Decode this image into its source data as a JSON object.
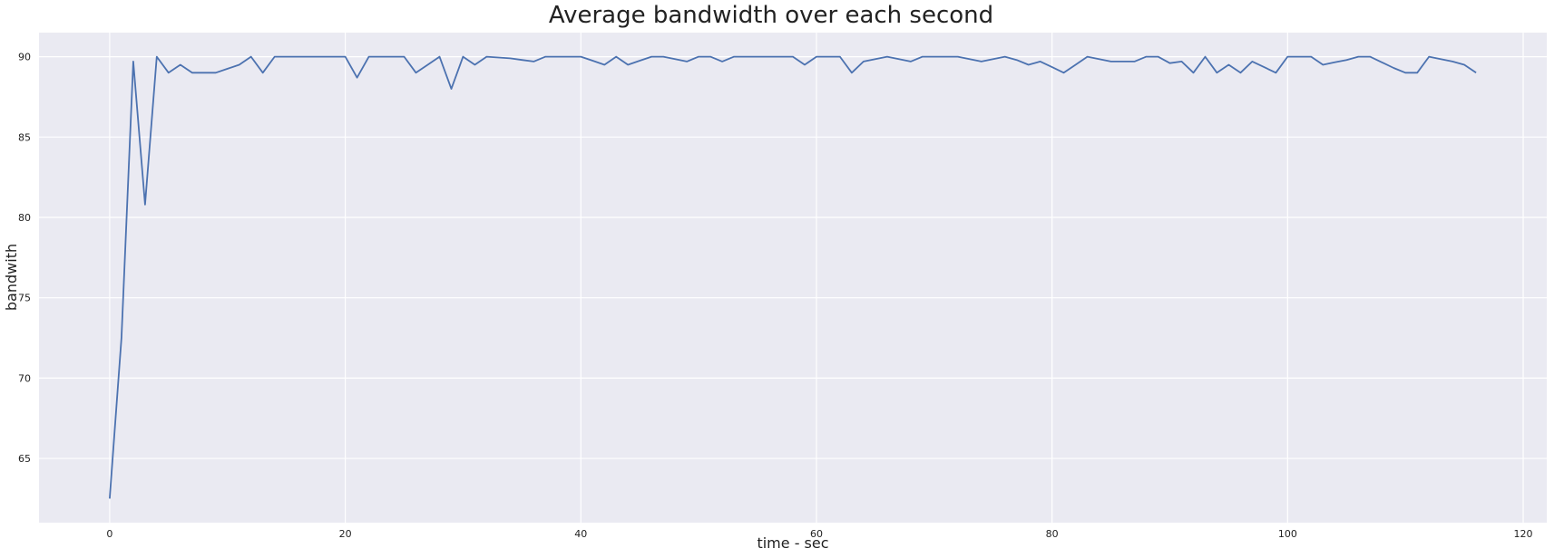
{
  "chart_data": {
    "type": "line",
    "title": "Average bandwidth over each second",
    "xlabel": "time - sec",
    "ylabel": "bandwith",
    "xlim": [
      -6,
      122
    ],
    "ylim": [
      61,
      91.5
    ],
    "xticks": [
      0,
      20,
      40,
      60,
      80,
      100,
      120
    ],
    "yticks": [
      65,
      70,
      75,
      80,
      85,
      90
    ],
    "grid": true,
    "background": "#eaeaf2",
    "grid_color": "#ffffff",
    "series": [
      {
        "color": "#4c72b0",
        "x": [
          0,
          1,
          2,
          3,
          4,
          5,
          6,
          7,
          8,
          9,
          10,
          11,
          12,
          13,
          14,
          15,
          16,
          17,
          18,
          19,
          20,
          21,
          22,
          23,
          24,
          25,
          26,
          27,
          28,
          29,
          30,
          31,
          32,
          33,
          34,
          35,
          36,
          37,
          38,
          39,
          40,
          41,
          42,
          43,
          44,
          45,
          46,
          47,
          48,
          49,
          50,
          51,
          52,
          53,
          54,
          55,
          56,
          57,
          58,
          59,
          60,
          61,
          62,
          63,
          64,
          65,
          66,
          67,
          68,
          69,
          70,
          71,
          72,
          73,
          74,
          75,
          76,
          77,
          78,
          79,
          80,
          81,
          82,
          83,
          84,
          85,
          86,
          87,
          88,
          89,
          90,
          91,
          92,
          93,
          94,
          95,
          96,
          97,
          98,
          99,
          100,
          101,
          102,
          103,
          104,
          105,
          106,
          107,
          108,
          109,
          110,
          111,
          112,
          113,
          114,
          115,
          116
        ],
        "y": [
          62.5,
          72.5,
          89.7,
          80.8,
          90,
          89,
          89.5,
          89,
          89,
          89,
          89.25,
          89.5,
          90,
          89,
          90,
          90,
          90,
          90,
          90,
          90,
          90,
          88.7,
          90,
          90,
          90,
          90,
          89,
          89.5,
          90,
          88,
          90,
          89.5,
          90,
          89.95,
          89.9,
          89.8,
          89.7,
          90,
          90,
          90,
          90,
          89.75,
          89.5,
          90,
          89.5,
          89.75,
          90,
          90,
          89.85,
          89.7,
          90,
          90,
          89.7,
          90,
          90,
          90,
          90,
          90,
          90,
          89.5,
          90,
          90,
          90,
          89,
          89.7,
          89.85,
          90,
          89.85,
          89.7,
          90,
          90,
          90,
          90,
          89.85,
          89.7,
          89.85,
          90,
          89.8,
          89.5,
          89.7,
          89.35,
          89,
          89.5,
          90,
          89.85,
          89.7,
          89.7,
          89.7,
          90,
          90,
          89.6,
          89.7,
          89,
          90,
          89,
          89.5,
          89,
          89.7,
          89.35,
          89,
          90,
          90,
          90,
          89.5,
          89.65,
          89.8,
          90,
          90,
          89.65,
          89.3,
          89,
          89,
          90,
          89.85,
          89.7,
          89.5,
          89
        ]
      }
    ]
  }
}
